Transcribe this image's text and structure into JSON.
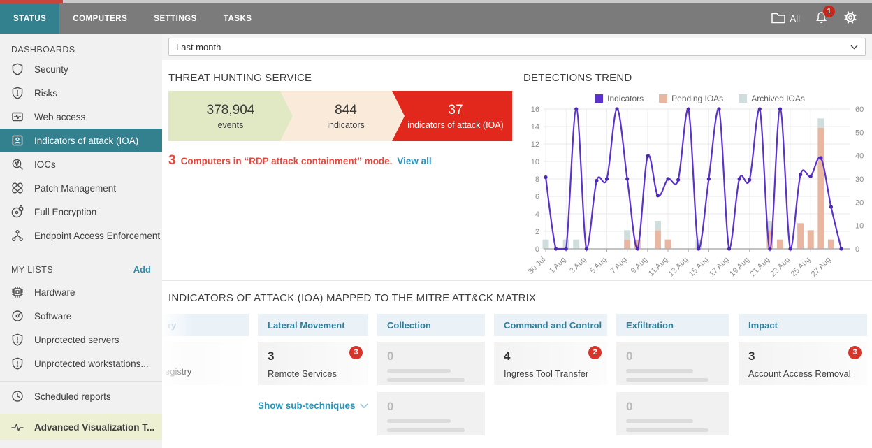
{
  "colors": {
    "accent_teal": "#33808f",
    "nav_gray": "#7b7b7b",
    "badge_red": "#d6352b",
    "funnel_green": "#e0e8c4",
    "funnel_peach": "#f9ead9",
    "funnel_red": "#e2271c",
    "alert_red": "#e6483d",
    "link_blue": "#2d93bd",
    "link_teal": "#2796ba",
    "matrix_header_bg": "#eaf2f8",
    "sidebar_highlight": "#edf0d2"
  },
  "nav": {
    "tabs": [
      {
        "label": "STATUS",
        "active": true
      },
      {
        "label": "COMPUTERS",
        "active": false
      },
      {
        "label": "SETTINGS",
        "active": false
      },
      {
        "label": "TASKS",
        "active": false
      }
    ],
    "folder_label": "All",
    "notification_count": "1"
  },
  "sidebar": {
    "dashboards_title": "DASHBOARDS",
    "items": [
      {
        "label": "Security",
        "icon": "shield-icon",
        "selected": false
      },
      {
        "label": "Risks",
        "icon": "shield-alert-icon",
        "selected": false
      },
      {
        "label": "Web access",
        "icon": "web-access-icon",
        "selected": false
      },
      {
        "label": "Indicators of attack (IOA)",
        "icon": "person-badge-icon",
        "selected": true
      },
      {
        "label": "IOCs",
        "icon": "search-dots-icon",
        "selected": false
      },
      {
        "label": "Patch Management",
        "icon": "patch-icon",
        "selected": false
      },
      {
        "label": "Full Encryption",
        "icon": "disk-lock-icon",
        "selected": false
      },
      {
        "label": "Endpoint Access Enforcement",
        "icon": "network-nodes-icon",
        "selected": false
      }
    ],
    "my_lists_title": "MY LISTS",
    "add_label": "Add",
    "list_items": [
      {
        "label": "Hardware",
        "icon": "chip-icon"
      },
      {
        "label": "Software",
        "icon": "disc-icon"
      },
      {
        "label": "Unprotected servers",
        "icon": "shield-alert-icon"
      },
      {
        "label": "Unprotected workstations...",
        "icon": "shield-alert-icon"
      }
    ],
    "footer_items": [
      {
        "label": "Scheduled reports",
        "icon": "clock-icon",
        "highlighted": false
      },
      {
        "label": "Advanced Visualization T...",
        "icon": "pulse-icon",
        "highlighted": true
      }
    ]
  },
  "filter": {
    "value": "Last month"
  },
  "threat_hunting": {
    "title": "THREAT HUNTING SERVICE",
    "funnel": [
      {
        "value": "378,904",
        "label": "events"
      },
      {
        "value": "844",
        "label": "indicators"
      },
      {
        "value": "37",
        "label": "indicators of attack (IOA)"
      }
    ],
    "alert": {
      "count": "3",
      "text": "Computers in “RDP attack containment” mode.",
      "link": "View all"
    }
  },
  "chart_data": {
    "type": "line+bar",
    "title": "DETECTIONS TREND",
    "x": [
      "30 Jul",
      "31 Jul",
      "1 Aug",
      "2 Aug",
      "3 Aug",
      "4 Aug",
      "5 Aug",
      "6 Aug",
      "7 Aug",
      "8 Aug",
      "9 Aug",
      "10 Aug",
      "11 Aug",
      "12 Aug",
      "13 Aug",
      "14 Aug",
      "15 Aug",
      "16 Aug",
      "17 Aug",
      "18 Aug",
      "19 Aug",
      "20 Aug",
      "21 Aug",
      "22 Aug",
      "23 Aug",
      "24 Aug",
      "25 Aug",
      "26 Aug",
      "27 Aug",
      "28 Aug"
    ],
    "tick_indices": [
      0,
      2,
      4,
      6,
      8,
      10,
      12,
      14,
      16,
      18,
      20,
      22,
      24,
      26,
      28
    ],
    "series": [
      {
        "name": "Indicators",
        "type": "line",
        "axis": "left",
        "color": "#5b32cc",
        "values": [
          8.2,
          0,
          0,
          16,
          0,
          7.8,
          8,
          16,
          8,
          0,
          10.6,
          6.1,
          8,
          7.9,
          16,
          0,
          8,
          16,
          0,
          8,
          7.9,
          16,
          0,
          16,
          0,
          8.5,
          8.3,
          10.4,
          4.8,
          0
        ]
      },
      {
        "name": "Pending IOAs",
        "type": "bar",
        "axis": "right",
        "color": "#e9b7a1",
        "values": [
          0,
          0,
          0,
          0,
          0,
          0,
          0,
          0,
          4,
          4,
          0,
          8,
          4,
          0,
          0,
          0,
          0,
          0,
          0,
          0,
          0,
          0,
          8,
          4,
          0,
          11,
          8,
          52,
          4,
          0
        ]
      },
      {
        "name": "Archived IOAs",
        "type": "bar",
        "axis": "right",
        "color": "#cfdedd",
        "values": [
          4,
          0,
          4,
          4,
          0,
          0,
          0,
          0,
          4,
          0,
          0,
          4,
          0,
          0,
          0,
          4,
          0,
          0,
          0,
          0,
          0,
          0,
          4,
          0,
          0,
          0,
          0,
          4,
          0,
          0
        ]
      }
    ],
    "ylim_left": [
      0,
      16
    ],
    "yticks_left": [
      0,
      2,
      4,
      6,
      8,
      10,
      12,
      14,
      16
    ],
    "ylim_right": [
      0,
      60
    ],
    "yticks_right": [
      0,
      10,
      20,
      30,
      40,
      50,
      60
    ],
    "grid": true,
    "legend_position": "top"
  },
  "mitre": {
    "title": "INDICATORS OF ATTACK (IOA) MAPPED TO THE MITRE ATT&CK MATRIX",
    "partial_column": {
      "header_fragment": "ry",
      "cell_fragment": "egistry"
    },
    "columns": [
      {
        "header": "Lateral Movement",
        "cells": [
          {
            "type": "technique",
            "count": "3",
            "technique": "Remote Services",
            "badge": "3"
          },
          {
            "type": "link",
            "label": "Show sub-techniques"
          }
        ]
      },
      {
        "header": "Collection",
        "cells": [
          {
            "type": "skeleton",
            "count": "0"
          },
          {
            "type": "skeleton",
            "count": "0"
          }
        ]
      },
      {
        "header": "Command and Control",
        "cells": [
          {
            "type": "technique",
            "count": "4",
            "technique": "Ingress Tool Transfer",
            "badge": "2"
          }
        ]
      },
      {
        "header": "Exfiltration",
        "cells": [
          {
            "type": "skeleton",
            "count": "0"
          },
          {
            "type": "skeleton",
            "count": "0"
          }
        ]
      },
      {
        "header": "Impact",
        "cells": [
          {
            "type": "technique",
            "count": "3",
            "technique": "Account Access Removal",
            "badge": "3"
          }
        ]
      }
    ]
  }
}
